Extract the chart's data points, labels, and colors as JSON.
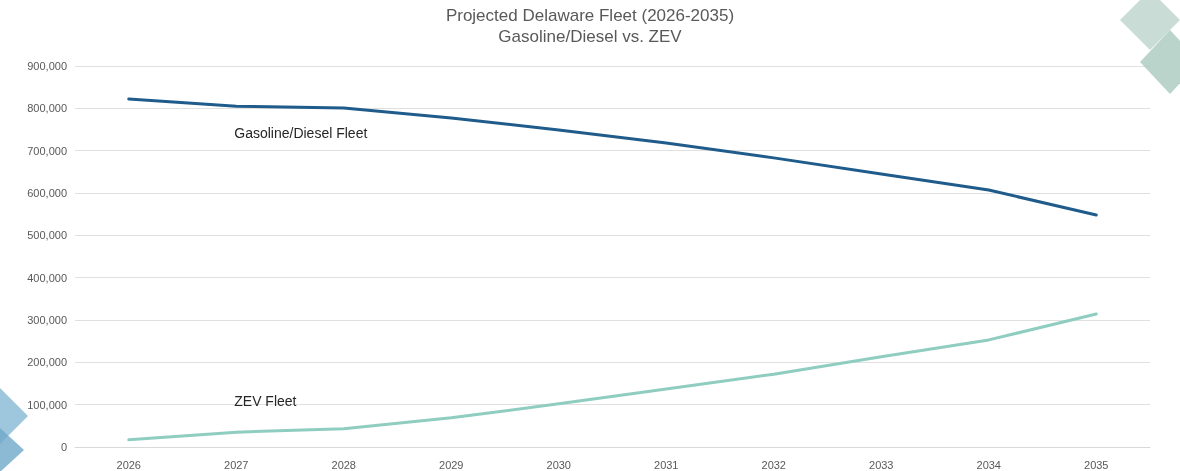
{
  "chart_data": {
    "type": "line",
    "title": "Projected Delaware Fleet (2026-2035)",
    "subtitle": "Gasoline/Diesel vs. ZEV",
    "categories": [
      "2026",
      "2027",
      "2028",
      "2029",
      "2030",
      "2031",
      "2032",
      "2033",
      "2034",
      "2035"
    ],
    "series": [
      {
        "name": "Gasoline/Diesel Fleet",
        "color": "#1f5c8b",
        "values": [
          822000,
          805000,
          801000,
          777000,
          749000,
          718000,
          683000,
          645000,
          607000,
          548000
        ]
      },
      {
        "name": "ZEV Fleet",
        "color": "#8fcdc0",
        "values": [
          17000,
          35000,
          43000,
          69000,
          102000,
          137000,
          172000,
          213000,
          253000,
          314000
        ]
      }
    ],
    "ylim": [
      0,
      900000
    ],
    "yticks": [
      0,
      {
        "value": 100000,
        "label": "100,000"
      },
      {
        "value": 200000,
        "label": "200,000"
      },
      {
        "value": 300000,
        "label": "300,000"
      },
      {
        "value": 400000,
        "label": "400,000"
      },
      {
        "value": 500000,
        "label": "500,000"
      },
      {
        "value": 600000,
        "label": "600,000"
      },
      {
        "value": 700000,
        "label": "700,000"
      },
      {
        "value": 800000,
        "label": "800,000"
      },
      {
        "value": 900000,
        "label": "900,000"
      }
    ],
    "grid": "y",
    "legend": false,
    "marker": "none",
    "line_style": "solid"
  }
}
